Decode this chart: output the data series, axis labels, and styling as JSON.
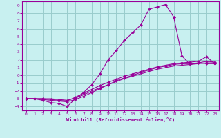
{
  "xlabel": "Windchill (Refroidissement éolien,°C)",
  "bg_color": "#c8f0f0",
  "grid_color": "#99cccc",
  "line_color": "#990099",
  "axis_bg": "#c8f0f0",
  "xlim": [
    -0.5,
    23.5
  ],
  "ylim": [
    -4.5,
    9.5
  ],
  "xticks": [
    0,
    1,
    2,
    3,
    4,
    5,
    6,
    7,
    8,
    9,
    10,
    11,
    12,
    13,
    14,
    15,
    16,
    17,
    18,
    19,
    20,
    21,
    22,
    23
  ],
  "yticks": [
    -4,
    -3,
    -2,
    -1,
    0,
    1,
    2,
    3,
    4,
    5,
    6,
    7,
    8,
    9
  ],
  "line1_x": [
    0,
    1,
    2,
    3,
    4,
    5,
    6,
    7,
    8,
    9,
    10,
    11,
    12,
    13,
    14,
    15,
    16,
    17,
    18
  ],
  "line1_y": [
    -3,
    -3,
    -3.2,
    -3.5,
    -3.6,
    -4.0,
    -3.0,
    -2.2,
    -1.2,
    0.2,
    2.0,
    3.2,
    4.5,
    5.5,
    6.5,
    8.5,
    8.8,
    9.1,
    7.5
  ],
  "line2_x": [
    0,
    1,
    2,
    3,
    4,
    5,
    6,
    7,
    8,
    9,
    10,
    11,
    12,
    13,
    14,
    15,
    16,
    17,
    18,
    19,
    20,
    21,
    22,
    23
  ],
  "line2_y": [
    -3,
    -3.0,
    -3.1,
    -3.2,
    -3.3,
    -3.4,
    -3.1,
    -2.7,
    -2.2,
    -1.7,
    -1.2,
    -0.7,
    -0.3,
    0.0,
    0.4,
    0.7,
    1.0,
    1.2,
    1.4,
    1.5,
    1.5,
    1.6,
    1.8,
    1.7
  ],
  "line3_x": [
    0,
    1,
    2,
    3,
    4,
    5,
    6,
    7,
    8,
    9,
    10,
    11,
    12,
    13,
    14,
    15,
    16,
    17,
    18,
    19,
    20,
    21,
    22,
    23
  ],
  "line3_y": [
    -3,
    -3.0,
    -3.0,
    -3.0,
    -3.1,
    -3.2,
    -2.9,
    -2.5,
    -2.0,
    -1.6,
    -1.2,
    -0.8,
    -0.4,
    -0.1,
    0.2,
    0.5,
    0.8,
    1.0,
    1.2,
    1.3,
    1.4,
    1.5,
    1.6,
    1.6
  ],
  "line4_x": [
    0,
    1,
    2,
    3,
    4,
    5,
    6,
    7,
    8,
    9,
    10,
    11,
    12,
    13,
    14,
    15,
    16,
    17,
    18,
    19,
    20,
    21,
    22,
    23
  ],
  "line4_y": [
    -3,
    -3.0,
    -3.0,
    -3.1,
    -3.2,
    -3.3,
    -2.8,
    -2.3,
    -1.8,
    -1.3,
    -0.9,
    -0.5,
    -0.1,
    0.2,
    0.5,
    0.8,
    1.1,
    1.3,
    1.5,
    1.6,
    1.7,
    1.8,
    2.4,
    1.5
  ],
  "line5_x": [
    18,
    19,
    20,
    21,
    22,
    23
  ],
  "line5_y": [
    7.5,
    2.5,
    1.4,
    1.6,
    1.5,
    1.5
  ]
}
